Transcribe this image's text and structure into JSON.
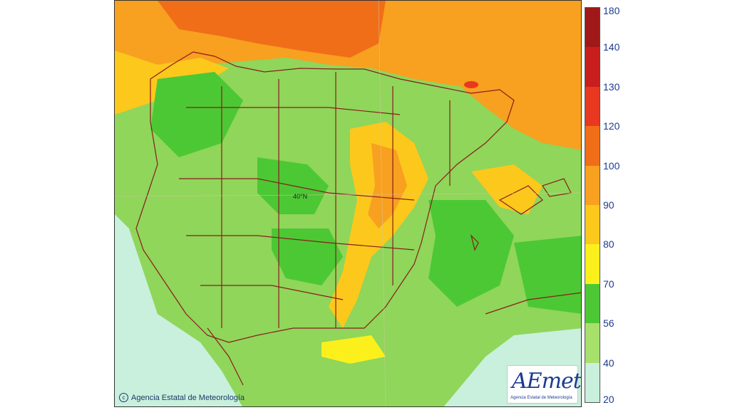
{
  "map": {
    "copyright": "Agencia Estatal de Meteorología",
    "logo": {
      "word": "AEmet",
      "subtitle": "Agencia Estatal de Meteorología"
    },
    "graticule_label": "40°N"
  },
  "legend": {
    "ticks": [
      "180",
      "140",
      "130",
      "120",
      "100",
      "90",
      "80",
      "70",
      "56",
      "40",
      "20"
    ],
    "bands": [
      {
        "from": "140",
        "to": "180",
        "color": "#a01818"
      },
      {
        "from": "130",
        "to": "140",
        "color": "#c81e1e"
      },
      {
        "from": "120",
        "to": "130",
        "color": "#e83820"
      },
      {
        "from": "100",
        "to": "120",
        "color": "#f06e18"
      },
      {
        "from": "90",
        "to": "100",
        "color": "#f8a020"
      },
      {
        "from": "80",
        "to": "90",
        "color": "#fcc81c"
      },
      {
        "from": "70",
        "to": "80",
        "color": "#fcf01c"
      },
      {
        "from": "56",
        "to": "70",
        "color": "#4cc834"
      },
      {
        "from": "40",
        "to": "56",
        "color": "#a8e06c"
      },
      {
        "from": "20",
        "to": "40",
        "color": "#c8f0dc"
      }
    ]
  }
}
